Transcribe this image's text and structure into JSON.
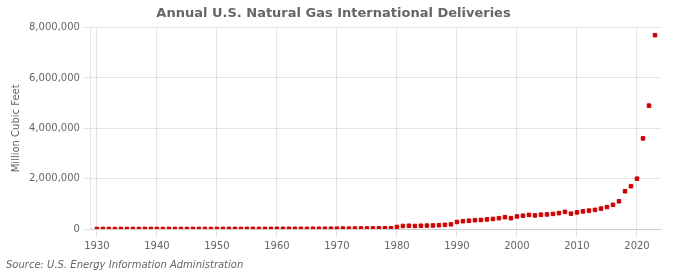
{
  "chart_data": {
    "type": "scatter",
    "title": "Annual U.S. Natural Gas International Deliveries",
    "ylabel": "Million Cubic Feet",
    "source": "Source: U.S. Energy Information Administration",
    "color": "#cc0000",
    "marker": "square",
    "grid": true,
    "xlim": [
      1929,
      2024
    ],
    "xticks": [
      1930,
      1940,
      1950,
      1960,
      1970,
      1980,
      1990,
      2000,
      2010,
      2020
    ],
    "ylim": [
      0,
      8000000
    ],
    "yticks": [
      0,
      {
        "value": 2000000,
        "label": "2,000,000"
      },
      {
        "value": 4000000,
        "label": "4,000,000"
      },
      {
        "value": 6000000,
        "label": "6,000,000"
      },
      {
        "value": 8000000,
        "label": "8,000,000"
      }
    ],
    "x": [
      1930,
      1931,
      1932,
      1933,
      1934,
      1935,
      1936,
      1937,
      1938,
      1939,
      1940,
      1941,
      1942,
      1943,
      1944,
      1945,
      1946,
      1947,
      1948,
      1949,
      1950,
      1951,
      1952,
      1953,
      1954,
      1955,
      1956,
      1957,
      1958,
      1959,
      1960,
      1961,
      1962,
      1963,
      1964,
      1965,
      1966,
      1967,
      1968,
      1969,
      1970,
      1971,
      1972,
      1973,
      1974,
      1975,
      1976,
      1977,
      1978,
      1979,
      1980,
      1981,
      1982,
      1983,
      1984,
      1985,
      1986,
      1987,
      1988,
      1989,
      1990,
      1991,
      1992,
      1993,
      1994,
      1995,
      1996,
      1997,
      1998,
      1999,
      2000,
      2001,
      2002,
      2003,
      2004,
      2005,
      2006,
      2007,
      2008,
      2009,
      2010,
      2011,
      2012,
      2013,
      2014,
      2015,
      2016,
      2017,
      2018,
      2019,
      2020,
      2021,
      2022,
      2023
    ],
    "values": [
      3000,
      2500,
      2000,
      1800,
      2000,
      2200,
      2500,
      2800,
      2400,
      2600,
      2800,
      3200,
      3000,
      2800,
      2600,
      2400,
      2800,
      3200,
      3400,
      3000,
      3400,
      3600,
      4000,
      4400,
      4200,
      4600,
      5000,
      5400,
      4800,
      5200,
      5600,
      6000,
      6400,
      7000,
      7600,
      8000,
      9000,
      10000,
      11000,
      12000,
      13000,
      14400,
      16000,
      18000,
      20000,
      22000,
      24000,
      26000,
      29000,
      32000,
      80000,
      120000,
      130000,
      120000,
      130000,
      135000,
      140000,
      150000,
      165000,
      185000,
      280000,
      310000,
      330000,
      350000,
      360000,
      380000,
      400000,
      430000,
      470000,
      430000,
      500000,
      530000,
      560000,
      540000,
      570000,
      580000,
      600000,
      630000,
      680000,
      610000,
      660000,
      700000,
      730000,
      760000,
      810000,
      870000,
      960000,
      1100000,
      1500000,
      1700000,
      2000000,
      3600000,
      4900000,
      7700000
    ]
  }
}
